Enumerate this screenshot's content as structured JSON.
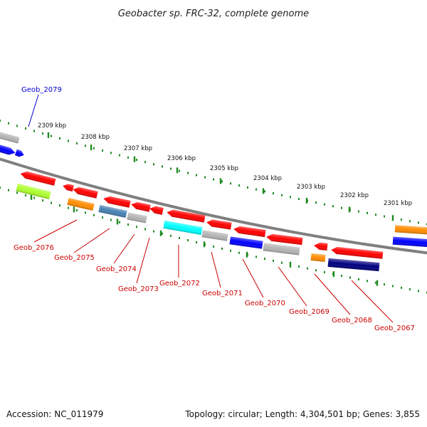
{
  "title": "Geobacter sp. FRC-32, complete genome",
  "footer": {
    "accession": "Accession: NC_011979",
    "summary": "Topology: circular; Length: 4,304,501 bp; Genes: 3,855"
  },
  "colors": {
    "backbone": "#7f7f7f",
    "tick": "#1f8a1f",
    "reverse_label": "#cc0000",
    "forward_label": "#0000cc"
  },
  "ruler": {
    "labels": [
      "2309 kbp",
      "2308 kbp",
      "2307 kbp",
      "2306 kbp",
      "2305 kbp",
      "2304 kbp",
      "2303 kbp",
      "2302 kbp",
      "2301 kbp"
    ]
  },
  "genes": {
    "forward": [
      {
        "label": "Geob_2079",
        "color": "#0000ff"
      }
    ],
    "reverse": [
      {
        "label": "Geob_2076",
        "color": "#ff0000"
      },
      {
        "label": "Geob_2075",
        "color": "#ff0000"
      },
      {
        "label": "Geob_2074",
        "color": "#ff0000"
      },
      {
        "label": "Geob_2073",
        "color": "#ff0000"
      },
      {
        "label": "Geob_2072",
        "color": "#ff0000"
      },
      {
        "label": "Geob_2071",
        "color": "#ff0000"
      },
      {
        "label": "Geob_2070",
        "color": "#ff0000"
      },
      {
        "label": "Geob_2069",
        "color": "#ff0000"
      },
      {
        "label": "Geob_2068",
        "color": "#ff0000"
      },
      {
        "label": "Geob_2067",
        "color": "#ff0000"
      }
    ]
  },
  "feature_colors": {
    "red": "#ff0000",
    "orange": "#ff8c00",
    "grey": "#b4b4b4",
    "blue": "#0000ff",
    "steelblue": "#4682b4",
    "cyan": "#00ffff",
    "lime": "#adff2f",
    "navy": "#000080"
  }
}
